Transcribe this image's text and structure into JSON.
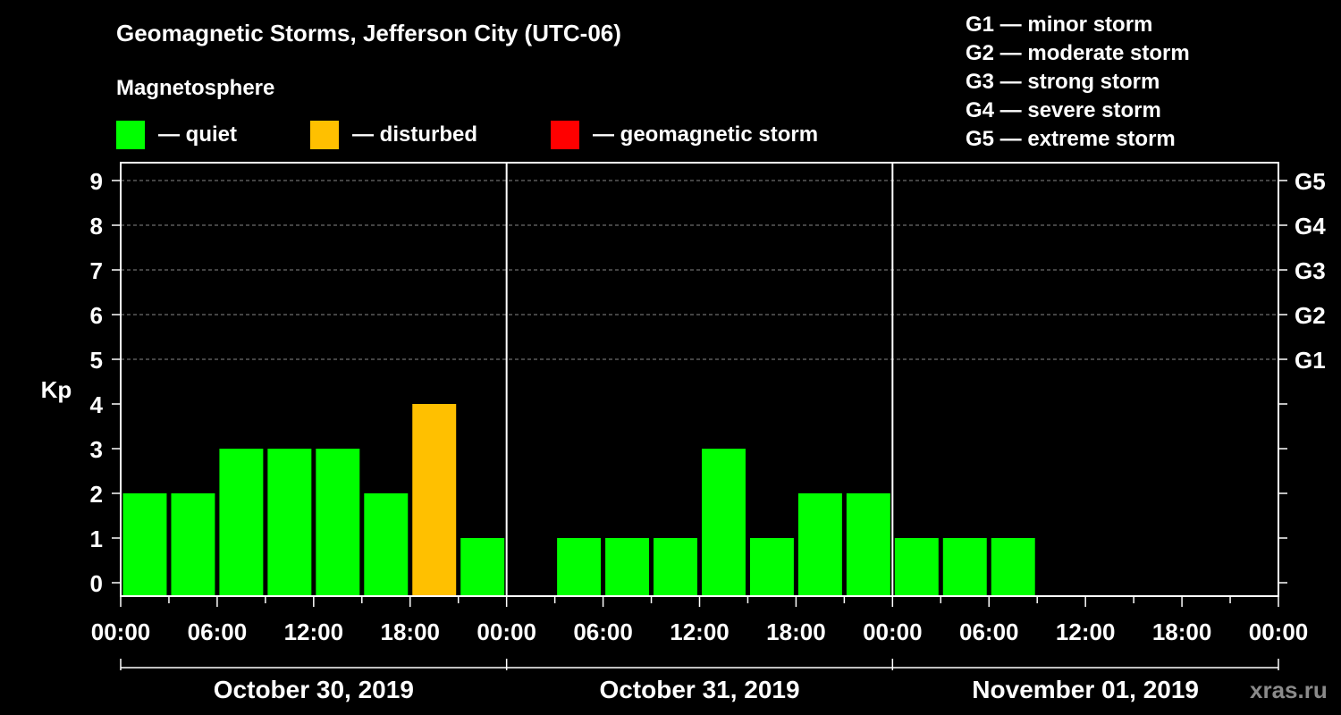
{
  "title": "Geomagnetic Storms, Jefferson City (UTC-06)",
  "subtitle": "Magnetosphere",
  "legend": [
    {
      "label": "— quiet",
      "color": "#00ff00"
    },
    {
      "label": "— disturbed",
      "color": "#ffc000"
    },
    {
      "label": "— geomagnetic storm",
      "color": "#ff0000"
    }
  ],
  "storm_scale": [
    "G1 — minor storm",
    "G2 — moderate storm",
    "G3 — strong storm",
    "G4 — severe storm",
    "G5 — extreme storm"
  ],
  "watermark": "xras.ru",
  "colors": {
    "background": "#000000",
    "grid": "#888888",
    "quiet": "#00ff00",
    "disturbed": "#ffc000",
    "storm": "#ff0000"
  },
  "chart_data": {
    "type": "bar",
    "ylabel": "Kp",
    "ylim": [
      0,
      9
    ],
    "yticks": [
      0,
      1,
      2,
      3,
      4,
      5,
      6,
      7,
      8,
      9
    ],
    "right_ticks": [
      {
        "value": 5,
        "label": "G1"
      },
      {
        "value": 6,
        "label": "G2"
      },
      {
        "value": 7,
        "label": "G3"
      },
      {
        "value": 8,
        "label": "G4"
      },
      {
        "value": 9,
        "label": "G5"
      }
    ],
    "x_tick_labels": [
      "00:00",
      "06:00",
      "12:00",
      "18:00",
      "00:00",
      "06:00",
      "12:00",
      "18:00",
      "00:00",
      "06:00",
      "12:00",
      "18:00",
      "00:00"
    ],
    "days": [
      "October 30, 2019",
      "October 31, 2019",
      "November 01, 2019"
    ],
    "interval_hours": 3,
    "kp_values": [
      2,
      2,
      3,
      3,
      3,
      2,
      4,
      1,
      null,
      1,
      1,
      1,
      3,
      1,
      2,
      2,
      1,
      1,
      1,
      null,
      null,
      null,
      null,
      null
    ],
    "bar_status": [
      "quiet",
      "quiet",
      "quiet",
      "quiet",
      "quiet",
      "quiet",
      "disturbed",
      "quiet",
      null,
      "quiet",
      "quiet",
      "quiet",
      "quiet",
      "quiet",
      "quiet",
      "quiet",
      "quiet",
      "quiet",
      "quiet",
      null,
      null,
      null,
      null,
      null
    ]
  }
}
